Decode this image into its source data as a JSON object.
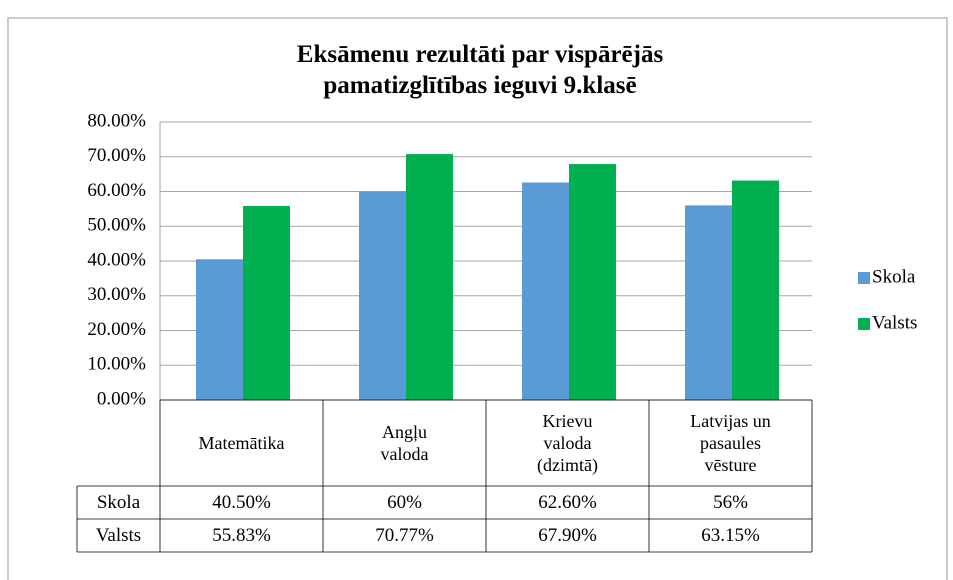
{
  "chart_data": {
    "type": "bar",
    "title": "Eksāmenu rezultāti par vispārējās pamatizglītības ieguvi 9.klasē",
    "categories": [
      "Matemātika",
      "Angļu valoda",
      "Krievu valoda (dzimtā)",
      "Latvijas un pasaules vēsture"
    ],
    "series": [
      {
        "name": "Skola",
        "color": "#5b9bd5",
        "values": [
          40.5,
          60,
          62.6,
          56
        ],
        "value_labels": [
          "40.50%",
          "60%",
          "62.60%",
          "56%"
        ]
      },
      {
        "name": "Valsts",
        "color": "#00b050",
        "values": [
          55.83,
          70.77,
          67.9,
          63.15
        ],
        "value_labels": [
          "55.83%",
          "70.77%",
          "67.90%",
          "63.15%"
        ]
      }
    ],
    "ylim": [
      0,
      80
    ],
    "yticks": [
      {
        "value": 0,
        "label": "0.00%"
      },
      {
        "value": 10,
        "label": "10.00%"
      },
      {
        "value": 20,
        "label": "20.00%"
      },
      {
        "value": 30,
        "label": "30.00%"
      },
      {
        "value": 40,
        "label": "40.00%"
      },
      {
        "value": 50,
        "label": "50.00%"
      },
      {
        "value": 60,
        "label": "60.00%"
      },
      {
        "value": 70,
        "label": "70.00%"
      },
      {
        "value": 80,
        "label": "80.00%"
      }
    ],
    "grid": true,
    "legend": "right",
    "data_table": true
  }
}
